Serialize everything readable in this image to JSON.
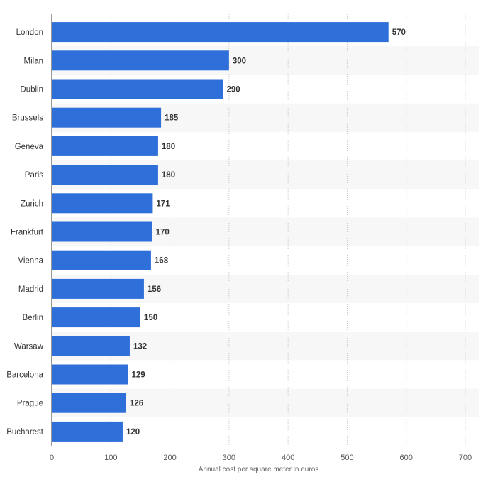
{
  "chart_data": {
    "type": "bar",
    "orientation": "horizontal",
    "title": "",
    "xlabel": "Annual cost per square meter in euros",
    "ylabel": "",
    "categories": [
      "London",
      "Milan",
      "Dublin",
      "Brussels",
      "Geneva",
      "Paris",
      "Zurich",
      "Frankfurt",
      "Vienna",
      "Madrid",
      "Berlin",
      "Warsaw",
      "Barcelona",
      "Prague",
      "Bucharest"
    ],
    "values": [
      570,
      300,
      290,
      185,
      180,
      180,
      171,
      170,
      168,
      156,
      150,
      132,
      129,
      126,
      120
    ],
    "xlim": [
      0,
      700
    ],
    "xticks": [
      0,
      100,
      200,
      300,
      400,
      500,
      600,
      700
    ],
    "grid": "vertical dotted",
    "legend": "none",
    "colors": {
      "bar": "#2f6fd9",
      "band": "#f7f7f7",
      "grid": "#c8c8c8",
      "axis": "#333333"
    }
  }
}
